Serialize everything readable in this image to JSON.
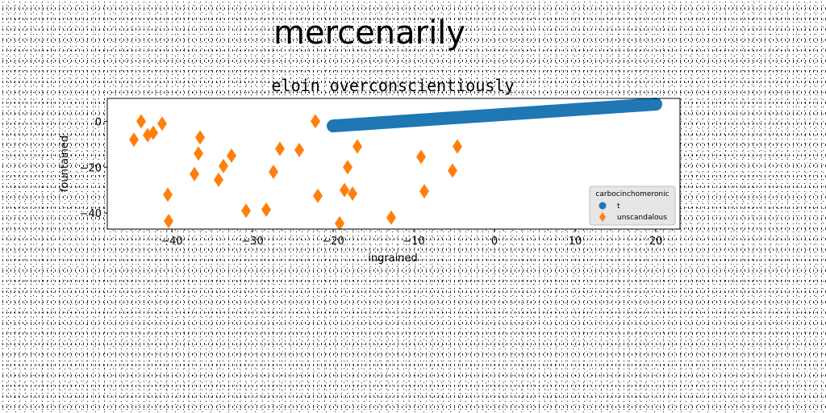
{
  "suptitle": "mercenarily",
  "chart_data": {
    "type": "scatter",
    "title": "eloin overconscientiously",
    "xlabel": "ingrained",
    "ylabel": "fountained",
    "xlim": [
      -48,
      23
    ],
    "ylim": [
      -47,
      10
    ],
    "xticks": [
      -40,
      -30,
      -20,
      -10,
      0,
      10,
      20
    ],
    "yticks": [
      -40,
      -20,
      0
    ],
    "xtick_labels": [
      "−40",
      "−30",
      "−20",
      "−10",
      "0",
      "10",
      "20"
    ],
    "ytick_labels": [
      "−40",
      "−20",
      "0"
    ],
    "legend": {
      "title": "carbocinchomeronic",
      "placement": "lower right"
    },
    "series": [
      {
        "name": "t",
        "marker": "circle",
        "color": "#1f77b4",
        "x_range": [
          -20,
          20
        ],
        "y_range": [
          -2,
          7.5
        ],
        "n_points": 150
      },
      {
        "name": "unscandalous",
        "marker": "diamond",
        "color": "#ff7f0e",
        "points": [
          [
            -44.7,
            -8
          ],
          [
            -43.8,
            0
          ],
          [
            -43,
            -6
          ],
          [
            -42.3,
            -5
          ],
          [
            -41.2,
            -1
          ],
          [
            -40.5,
            -32
          ],
          [
            -40.4,
            -43.5
          ],
          [
            -37.2,
            -23
          ],
          [
            -36.7,
            -14
          ],
          [
            -36.5,
            -7
          ],
          [
            -34.2,
            -25.5
          ],
          [
            -33.6,
            -19.5
          ],
          [
            -32.6,
            -15
          ],
          [
            -30.8,
            -39
          ],
          [
            -28.3,
            -38.5
          ],
          [
            -27.4,
            -22
          ],
          [
            -26.6,
            -12
          ],
          [
            -24.2,
            -12.5
          ],
          [
            -22.2,
            0
          ],
          [
            -21.9,
            -32.5
          ],
          [
            -19.2,
            -44.5
          ],
          [
            -18.6,
            -30
          ],
          [
            -18.2,
            -20
          ],
          [
            -17.6,
            -31.5
          ],
          [
            -17,
            -11
          ],
          [
            -12.8,
            -42
          ],
          [
            -9.1,
            -15.5
          ],
          [
            -8.7,
            -30.5
          ],
          [
            -5.2,
            -21.5
          ],
          [
            -4.6,
            -11
          ]
        ]
      }
    ]
  }
}
